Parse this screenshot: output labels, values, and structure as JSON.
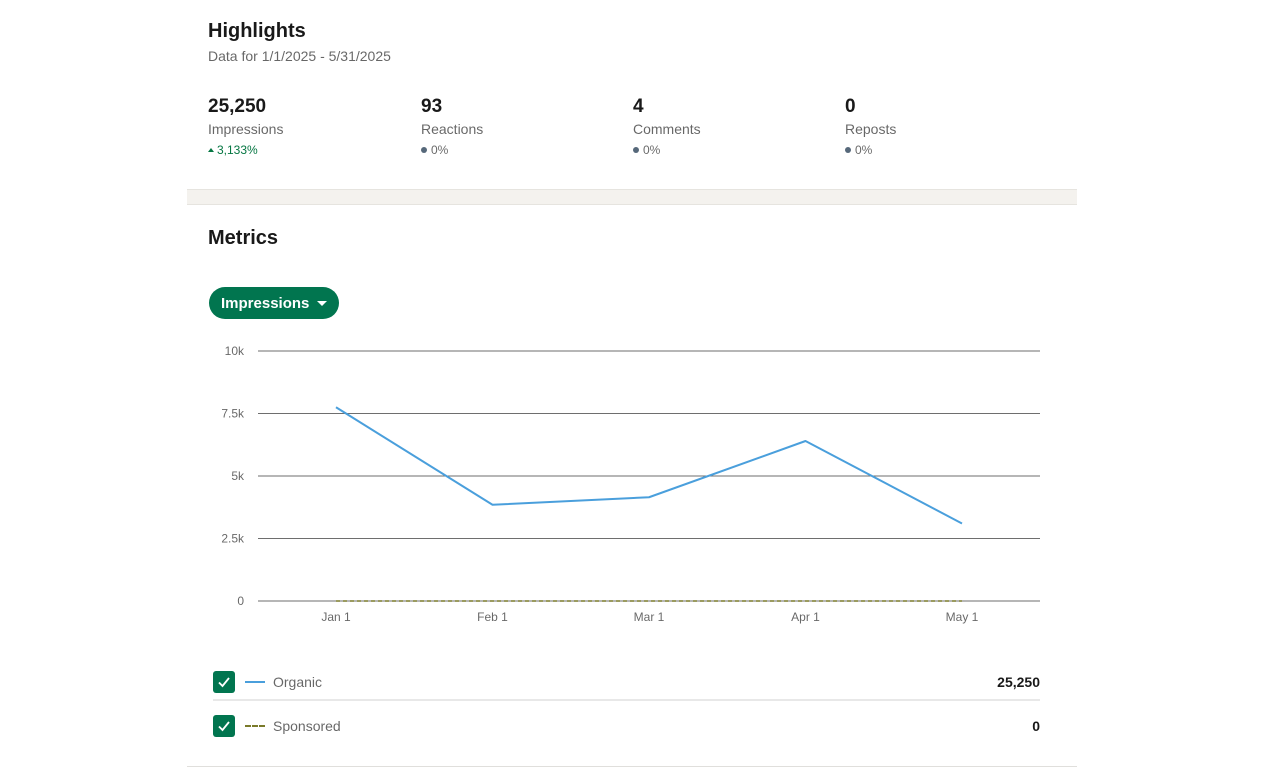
{
  "highlights": {
    "title": "Highlights",
    "date_range": "Data for 1/1/2025 - 5/31/2025",
    "stats": [
      {
        "value": "25,250",
        "label": "Impressions",
        "change": "3,133%",
        "trend": "up"
      },
      {
        "value": "93",
        "label": "Reactions",
        "change": "0%",
        "trend": "flat"
      },
      {
        "value": "4",
        "label": "Comments",
        "change": "0%",
        "trend": "flat"
      },
      {
        "value": "0",
        "label": "Reposts",
        "change": "0%",
        "trend": "flat"
      }
    ]
  },
  "metrics": {
    "title": "Metrics",
    "dropdown_label": "Impressions",
    "legend": [
      {
        "name": "Organic",
        "total": "25,250",
        "checked": true
      },
      {
        "name": "Sponsored",
        "total": "0",
        "checked": true
      }
    ]
  },
  "colors": {
    "accent_green": "#01754f",
    "positive_green": "#057642",
    "organic_line": "#4a9fdc",
    "sponsored_line": "#7a7a2a"
  },
  "chart_data": {
    "type": "line",
    "x": [
      "Jan 1",
      "Feb 1",
      "Mar 1",
      "Apr 1",
      "May 1"
    ],
    "y_ticks": [
      "0",
      "2.5k",
      "5k",
      "7.5k",
      "10k"
    ],
    "ylim": [
      0,
      10000
    ],
    "grid": true,
    "series": [
      {
        "name": "Organic",
        "values": [
          7750,
          3850,
          4150,
          6400,
          3100
        ],
        "style": "solid"
      },
      {
        "name": "Sponsored",
        "values": [
          0,
          0,
          0,
          0,
          0
        ],
        "style": "dashed"
      }
    ]
  }
}
